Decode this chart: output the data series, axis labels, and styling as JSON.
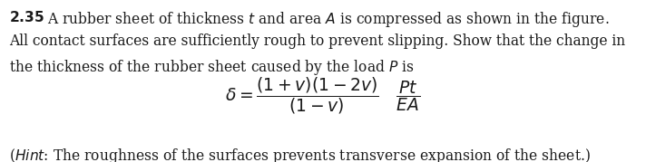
{
  "problem_number": "2.35",
  "line1_bold": "2.35",
  "line1_rest": "A rubber sheet of thickness $t$ and area $A$ is compressed as shown in the figure.",
  "line2": "All contact surfaces are sufficiently rough to prevent slipping. Show that the change in",
  "line3": "the thickness of the rubber sheet caused by the load $P$ is",
  "equation": "$\\delta = \\dfrac{(1+v)(1-2v)}{(1-v)} \\quad \\dfrac{Pt}{EA}$",
  "hint_italic": "Hint",
  "hint_rest": ": The roughness of the surfaces prevents transverse expansion of the sheet.)",
  "bg_color": "#ffffff",
  "text_color": "#1a1a1a",
  "fontsize_body": 11.2,
  "fontsize_eq": 13.5,
  "fig_width": 7.12,
  "fig_height": 1.79
}
